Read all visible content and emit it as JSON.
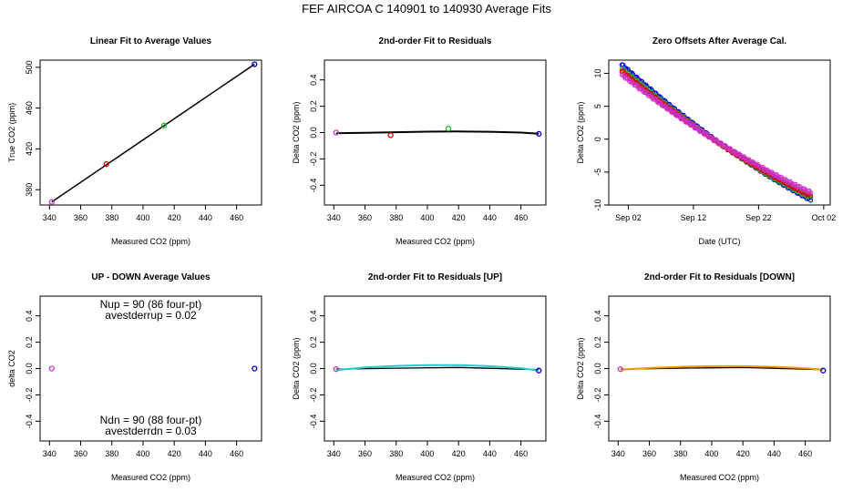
{
  "figure_title": "FEF   AIRCOA C   140901 to 140930   Average Fits",
  "colors": {
    "magenta": "#cc33cc",
    "red": "#dd0000",
    "green": "#22bb22",
    "blue": "#0000cc",
    "cyan": "#22cccc",
    "orange": "#ee9900",
    "black": "#000000"
  },
  "panels": [
    {
      "title": "Linear Fit to Average Values",
      "chart_data": {
        "type": "scatter",
        "xlabel": "Measured CO2 (ppm)",
        "ylabel": "True CO2 (ppm)",
        "xlim": [
          334,
          476
        ],
        "ylim": [
          365,
          507
        ],
        "xticks": [
          "340",
          "360",
          "380",
          "400",
          "420",
          "440",
          "460"
        ],
        "yticks": [
          "380",
          "420",
          "460",
          "500"
        ],
        "points": [
          {
            "x": 341.5,
            "y": 368,
            "color": "magenta"
          },
          {
            "x": 376.5,
            "y": 405,
            "color": "red"
          },
          {
            "x": 413.5,
            "y": 443,
            "color": "green"
          },
          {
            "x": 471.5,
            "y": 503,
            "color": "blue"
          }
        ],
        "fit_line": {
          "x": [
            341.5,
            471.5
          ],
          "y": [
            368,
            503
          ],
          "color": "black"
        }
      }
    },
    {
      "title": "2nd-order Fit to Residuals",
      "chart_data": {
        "type": "scatter",
        "xlabel": "Measured CO2 (ppm)",
        "ylabel": "Delta CO2 (ppm)",
        "xlim": [
          334,
          476
        ],
        "ylim": [
          -0.55,
          0.55
        ],
        "xticks": [
          "340",
          "360",
          "380",
          "400",
          "420",
          "440",
          "460"
        ],
        "yticks": [
          "-0.4",
          "-0.2",
          "0.0",
          "0.2",
          "0.4"
        ],
        "points": [
          {
            "x": 341.5,
            "y": 0.0,
            "color": "magenta"
          },
          {
            "x": 376.5,
            "y": -0.02,
            "color": "red"
          },
          {
            "x": 413.5,
            "y": 0.03,
            "color": "green"
          },
          {
            "x": 471.5,
            "y": -0.01,
            "color": "blue"
          }
        ],
        "fit_curve": {
          "x": [
            341.5,
            360,
            380,
            400,
            420,
            440,
            460,
            471.5
          ],
          "y": [
            -0.005,
            -0.002,
            0.003,
            0.007,
            0.008,
            0.006,
            0.0,
            -0.008
          ],
          "color": "black"
        }
      }
    },
    {
      "title": "Zero Offsets After Average Cal.",
      "chart_data": {
        "type": "scatter",
        "xlabel": "Date (UTC)",
        "ylabel": "Delta CO2 (ppm)",
        "xlim": [
          "2014-08-30",
          "2014-10-03"
        ],
        "ylim": [
          -10,
          12
        ],
        "xticks": [
          "Sep 02",
          "Sep 12",
          "Sep 22",
          "Oct 02"
        ],
        "yticks": [
          "-10",
          "-5",
          "0",
          "5",
          "10"
        ],
        "series": [
          {
            "color": "blue",
            "start": [
              "2014-09-01",
              11.3
            ],
            "end": [
              "2014-09-30",
              -9.2
            ]
          },
          {
            "color": "green",
            "start": [
              "2014-09-01",
              10.7
            ],
            "end": [
              "2014-09-30",
              -8.9
            ]
          },
          {
            "color": "red",
            "start": [
              "2014-09-01",
              10.3
            ],
            "end": [
              "2014-09-30",
              -8.6
            ]
          },
          {
            "color": "magenta",
            "start": [
              "2014-09-01",
              9.8
            ],
            "end": [
              "2014-09-30",
              -8.1
            ]
          }
        ]
      }
    },
    {
      "title": "UP - DOWN Average Values",
      "chart_data": {
        "type": "scatter",
        "xlabel": "Measured CO2 (ppm)",
        "ylabel": "delta CO2",
        "xlim": [
          334,
          476
        ],
        "ylim": [
          -0.55,
          0.55
        ],
        "xticks": [
          "340",
          "360",
          "380",
          "400",
          "420",
          "440",
          "460"
        ],
        "yticks": [
          "-0.4",
          "-0.2",
          "0.0",
          "0.2",
          "0.4"
        ],
        "points": [
          {
            "x": 341.5,
            "y": 0.0,
            "color": "magenta"
          },
          {
            "x": 471.5,
            "y": 0.0,
            "color": "blue"
          }
        ],
        "annotations": [
          "Nup = 90 (86 four-pt)",
          "avestderrup =  0.02",
          "Ndn = 90 (88 four-pt)",
          "avestderrdn =  0.03"
        ]
      }
    },
    {
      "title": "2nd-order Fit to Residuals [UP]",
      "chart_data": {
        "type": "line",
        "xlabel": "Measured CO2 (ppm)",
        "ylabel": "Delta CO2 (ppm)",
        "xlim": [
          334,
          476
        ],
        "ylim": [
          -0.55,
          0.55
        ],
        "xticks": [
          "340",
          "360",
          "380",
          "400",
          "420",
          "440",
          "460"
        ],
        "yticks": [
          "-0.4",
          "-0.2",
          "0.0",
          "0.2",
          "0.4"
        ],
        "points": [
          {
            "x": 341.5,
            "y": -0.005,
            "color": "magenta"
          },
          {
            "x": 471.5,
            "y": -0.015,
            "color": "blue"
          }
        ],
        "fit_curve": {
          "x": [
            341.5,
            360,
            380,
            400,
            420,
            440,
            460,
            471.5
          ],
          "y": [
            -0.012,
            0.008,
            0.02,
            0.026,
            0.026,
            0.018,
            0.003,
            -0.015
          ],
          "color": "cyan"
        },
        "base_curve": {
          "x": [
            341.5,
            380,
            420,
            471.5
          ],
          "y": [
            -0.005,
            0.003,
            0.008,
            -0.008
          ],
          "color": "black"
        }
      }
    },
    {
      "title": "2nd-order Fit to Residuals [DOWN]",
      "chart_data": {
        "type": "line",
        "xlabel": "Measured CO2 (ppm)",
        "ylabel": "Delta CO2 (ppm)",
        "xlim": [
          334,
          476
        ],
        "ylim": [
          -0.55,
          0.55
        ],
        "xticks": [
          "340",
          "360",
          "380",
          "400",
          "420",
          "440",
          "460"
        ],
        "yticks": [
          "-0.4",
          "-0.2",
          "0.0",
          "0.2",
          "0.4"
        ],
        "points": [
          {
            "x": 341.5,
            "y": -0.005,
            "color": "magenta"
          },
          {
            "x": 471.5,
            "y": -0.015,
            "color": "blue"
          }
        ],
        "fit_curve": {
          "x": [
            341.5,
            360,
            380,
            400,
            420,
            440,
            460,
            471.5
          ],
          "y": [
            -0.01,
            0.004,
            0.013,
            0.018,
            0.018,
            0.013,
            0.003,
            -0.008
          ],
          "color": "orange"
        },
        "base_curve": {
          "x": [
            341.5,
            380,
            420,
            471.5
          ],
          "y": [
            -0.005,
            0.003,
            0.008,
            -0.008
          ],
          "color": "black"
        }
      }
    }
  ]
}
